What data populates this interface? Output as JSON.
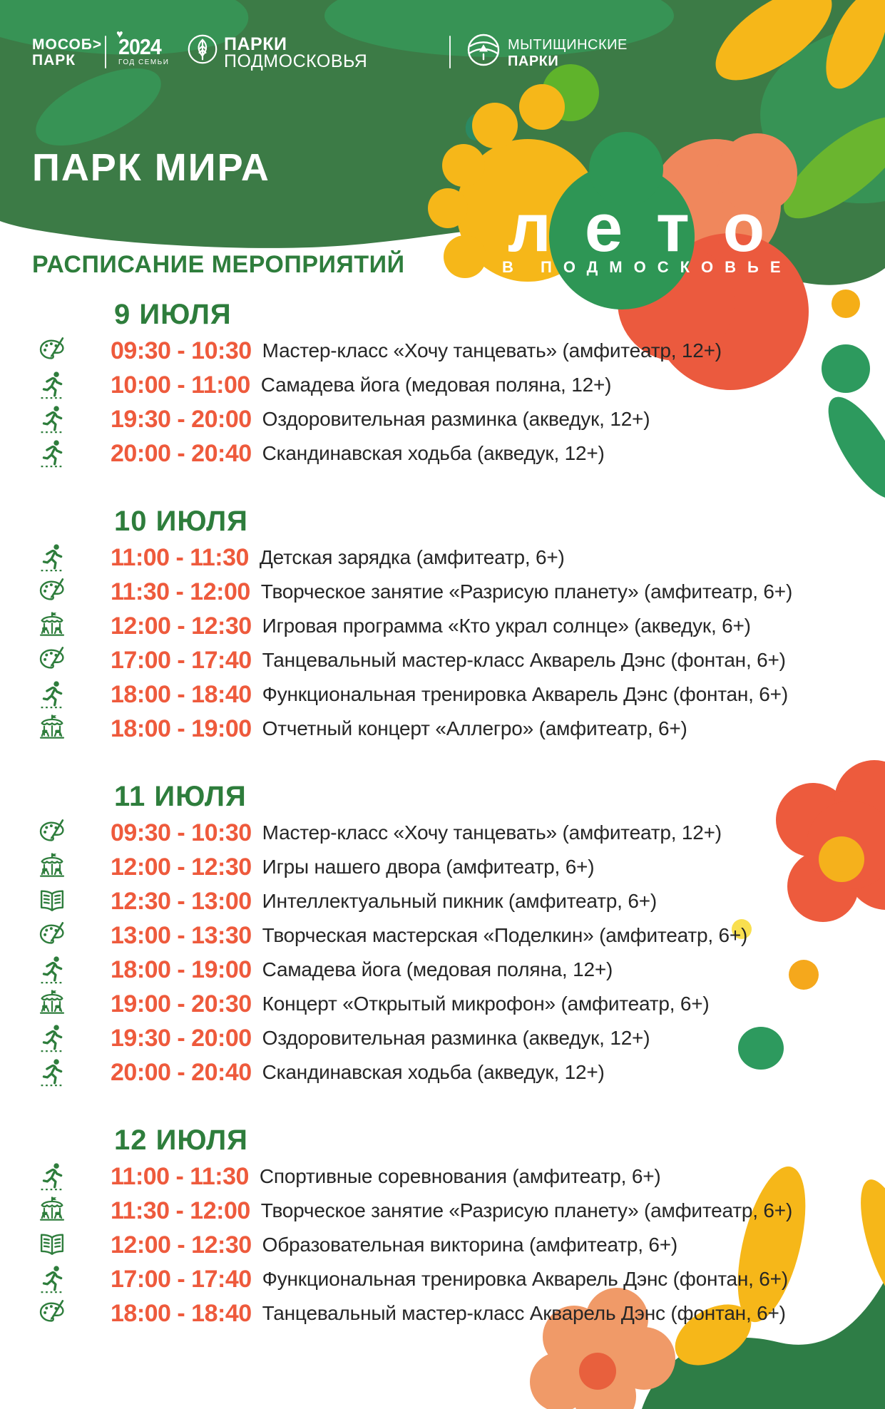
{
  "header": {
    "logos": {
      "mosobpark_line1": "МОСОБ>",
      "mosobpark_line2": "ПАРК",
      "year_number": "2024",
      "year_heart_icon": "heart-icon",
      "year_caption": "ГОД СЕМЬИ",
      "parki_podmoskovya_line1": "ПАРКИ",
      "parki_podmoskovya_line2": "ПОДМОСКОВЬЯ",
      "parki_leaf_icon": "leaf-circle-icon",
      "mytischi_line1": "МЫТИЩИНСКИЕ",
      "mytischi_line2": "ПАРКИ",
      "mytischi_globe_icon": "globe-tree-icon"
    },
    "park_title": "ПАРК МИРА",
    "leto_logo": {
      "line1": "лето",
      "line2": "В ПОДМОСКОВЬЕ"
    }
  },
  "schedule": {
    "title": "РАСПИСАНИЕ МЕРОПРИЯТИЙ",
    "sections": [
      {
        "date": "9 ИЮЛЯ",
        "events": [
          {
            "icon": "palette",
            "time": "09:30 - 10:30",
            "title": "Мастер-класс «Хочу танцевать» (амфитеатр, 12+)"
          },
          {
            "icon": "runner",
            "time": "10:00 - 11:00",
            "title": "Самадева йога (медовая поляна, 12+)"
          },
          {
            "icon": "runner",
            "time": "19:30 - 20:00",
            "title": "Оздоровительная разминка (акведук, 12+)"
          },
          {
            "icon": "runner",
            "time": "20:00 - 20:40",
            "title": "Скандинавская ходьба (акведук, 12+)"
          }
        ]
      },
      {
        "date": "10 ИЮЛЯ",
        "events": [
          {
            "icon": "runner",
            "time": "11:00 - 11:30",
            "title": "Детская зарядка (амфитеатр, 6+)"
          },
          {
            "icon": "palette",
            "time": "11:30 - 12:00",
            "title": "Творческое занятие «Разрисую планету» (амфитеатр, 6+)"
          },
          {
            "icon": "carousel",
            "time": "12:00 - 12:30",
            "title": "Игровая программа «Кто украл солнце» (акведук, 6+)"
          },
          {
            "icon": "palette",
            "time": "17:00 - 17:40",
            "title": "Танцевальный мастер-класс Акварель Дэнс (фонтан, 6+)"
          },
          {
            "icon": "runner",
            "time": "18:00 - 18:40",
            "title": "Функциональная тренировка Акварель Дэнс (фонтан, 6+)"
          },
          {
            "icon": "carousel",
            "time": "18:00 - 19:00",
            "title": "Отчетный концерт «Аллегро» (амфитеатр, 6+)"
          }
        ]
      },
      {
        "date": "11 ИЮЛЯ",
        "events": [
          {
            "icon": "palette",
            "time": "09:30 - 10:30",
            "title": "Мастер-класс «Хочу танцевать» (амфитеатр, 12+)"
          },
          {
            "icon": "carousel",
            "time": "12:00 - 12:30",
            "title": "Игры нашего двора (амфитеатр, 6+)"
          },
          {
            "icon": "book",
            "time": "12:30 - 13:00",
            "title": "Интеллектуальный пикник (амфитеатр, 6+)"
          },
          {
            "icon": "palette",
            "time": "13:00 - 13:30",
            "title": "Творческая мастерская «Поделкин» (амфитеатр, 6+)"
          },
          {
            "icon": "runner",
            "time": "18:00 - 19:00",
            "title": "Самадева йога (медовая поляна, 12+)"
          },
          {
            "icon": "carousel",
            "time": "19:00 - 20:30",
            "title": "Концерт «Открытый микрофон» (амфитеатр, 6+)"
          },
          {
            "icon": "runner",
            "time": "19:30 - 20:00",
            "title": "Оздоровительная разминка (акведук, 12+)"
          },
          {
            "icon": "runner",
            "time": "20:00 - 20:40",
            "title": "Скандинавская ходьба (акведук, 12+)"
          }
        ]
      },
      {
        "date": "12 ИЮЛЯ",
        "events": [
          {
            "icon": "runner",
            "time": "11:00 - 11:30",
            "title": "Спортивные соревнования (амфитеатр, 6+)"
          },
          {
            "icon": "carousel",
            "time": "11:30 - 12:00",
            "title": "Творческое занятие «Разрисую планету» (амфитеатр, 6+)"
          },
          {
            "icon": "book",
            "time": "12:00 - 12:30",
            "title": "Образовательная викторина (амфитеатр, 6+)"
          },
          {
            "icon": "runner",
            "time": "17:00 - 17:40",
            "title": "Функциональная тренировка Акварель Дэнс (фонтан, 6+)"
          },
          {
            "icon": "palette",
            "time": "18:00 - 18:40",
            "title": "Танцевальный мастер-класс Акварель Дэнс (фонтан, 6+)"
          }
        ]
      }
    ]
  },
  "colors": {
    "header_green": "#3c7b46",
    "header_light_green": "#379355",
    "lime_green": "#5fb32b",
    "teal_green": "#2b8a63",
    "accent_yellow": "#f6b719",
    "salmon": "#f0875c",
    "orange_red": "#eb5a3e",
    "text_green": "#2e7d3c",
    "time_orange": "#ee5a3c",
    "text_dark": "#262626",
    "decor_green": "#2d9a5e",
    "flower_salmon": "#f09a68"
  }
}
